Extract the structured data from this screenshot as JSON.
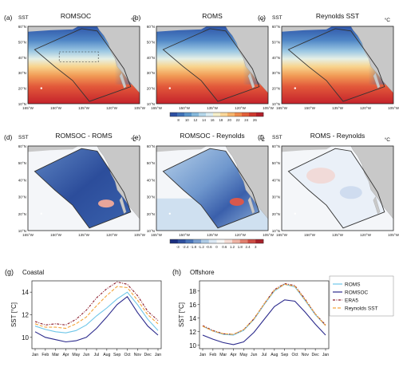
{
  "figure": {
    "colors": {
      "roms": "#6ec6e8",
      "romsoc": "#2b2a8c",
      "era5": "#8b1a2a",
      "reynolds": "#f4a43a",
      "land": "#c8c8c8",
      "box": "#555555"
    },
    "top_row": {
      "panels": [
        {
          "letter": "(a)",
          "var": "SST",
          "title": "ROMSOC",
          "unit": "°C"
        },
        {
          "letter": "(b)",
          "var": "",
          "title": "ROMS",
          "unit": "°C"
        },
        {
          "letter": "(c)",
          "var": "SST",
          "title": "Reynolds SST",
          "unit": "°C"
        }
      ],
      "lat_ticks": [
        "60°N",
        "50°N",
        "40°N",
        "30°N",
        "20°N",
        "10°N"
      ],
      "lon_ticks": [
        "165°W",
        "150°W",
        "135°W",
        "120°W",
        "105°W"
      ],
      "colorbar": {
        "ticks": [
          "8",
          "10",
          "12",
          "14",
          "16",
          "18",
          "20",
          "22",
          "24",
          "26"
        ],
        "colors": [
          "#2d4fa3",
          "#3f72b8",
          "#5b96cb",
          "#86b9dc",
          "#b5d7ea",
          "#dcedf3",
          "#f6efc9",
          "#fbd89a",
          "#f7b56d",
          "#ef8a4b",
          "#e3603a",
          "#cf3a2f",
          "#b31f2a"
        ]
      }
    },
    "middle_row": {
      "panels": [
        {
          "letter": "(d)",
          "var": "SST",
          "title": "ROMSOC - ROMS",
          "unit": "°C"
        },
        {
          "letter": "(e)",
          "var": "",
          "title": "ROMSOC - Reynolds",
          "unit": "°C"
        },
        {
          "letter": "(f)",
          "var": "SST",
          "title": "ROMS - Reynolds",
          "unit": "°C"
        }
      ],
      "lat_ticks": [
        "60°N",
        "50°N",
        "40°N",
        "30°N",
        "20°N",
        "10°N"
      ],
      "lon_ticks": [
        "165°W",
        "150°W",
        "135°W",
        "120°W",
        "105°W"
      ],
      "colorbar": {
        "ticks": [
          "-3",
          "-2.4",
          "-1.8",
          "-1.2",
          "-0.6",
          "0",
          "0.6",
          "1.2",
          "1.8",
          "2.4",
          "3"
        ],
        "colors": [
          "#1b2f80",
          "#2e4f9e",
          "#4a74b8",
          "#7b9fd0",
          "#aecbe6",
          "#dbe8f3",
          "#f6f6f6",
          "#f5ddd6",
          "#efb4a6",
          "#e2806f",
          "#cc4d44",
          "#a7212a"
        ]
      }
    },
    "bottom_charts": {
      "months": [
        "Jan",
        "Feb",
        "Mar",
        "Apr",
        "May",
        "Jun",
        "Jul",
        "Aug",
        "Sep",
        "Oct",
        "Nov",
        "Dec",
        "Jan"
      ],
      "legend": [
        "ROMS",
        "ROMSOC",
        "ERA5",
        "Reynolds SST"
      ]
    }
  },
  "chart_data": [
    {
      "type": "line",
      "panel": "(g)",
      "title": "Coastal",
      "ylabel": "SST [°C]",
      "xlabel": "",
      "ylim": [
        9,
        15
      ],
      "yticks": [
        10,
        12,
        14
      ],
      "x": [
        "Jan",
        "Feb",
        "Mar",
        "Apr",
        "May",
        "Jun",
        "Jul",
        "Aug",
        "Sep",
        "Oct",
        "Nov",
        "Dec",
        "Jan"
      ],
      "series": [
        {
          "name": "ROMS",
          "values": [
            11.0,
            10.7,
            10.5,
            10.4,
            10.6,
            11.1,
            11.9,
            12.6,
            13.4,
            14.0,
            12.9,
            11.6,
            10.6
          ]
        },
        {
          "name": "ROMSOC",
          "values": [
            10.5,
            10.0,
            9.8,
            9.6,
            9.7,
            10.0,
            10.8,
            11.8,
            12.9,
            13.6,
            12.2,
            11.0,
            10.2
          ]
        },
        {
          "name": "ERA5",
          "values": [
            11.4,
            11.1,
            11.2,
            11.1,
            11.6,
            12.4,
            13.5,
            14.3,
            14.9,
            14.7,
            13.7,
            12.3,
            11.5
          ]
        },
        {
          "name": "Reynolds SST",
          "values": [
            11.2,
            10.9,
            10.9,
            10.8,
            11.2,
            11.8,
            12.8,
            13.7,
            14.5,
            14.4,
            13.3,
            12.0,
            11.2
          ]
        }
      ]
    },
    {
      "type": "line",
      "panel": "(h)",
      "title": "Offshore",
      "ylabel": "SST [°C]",
      "xlabel": "",
      "ylim": [
        9.5,
        19.5
      ],
      "yticks": [
        10,
        12,
        14,
        16,
        18
      ],
      "x": [
        "Jan",
        "Feb",
        "Mar",
        "Apr",
        "May",
        "Jun",
        "Jul",
        "Aug",
        "Sep",
        "Oct",
        "Nov",
        "Dec",
        "Jan"
      ],
      "series": [
        {
          "name": "ROMS",
          "values": [
            12.8,
            12.1,
            11.6,
            11.5,
            12.2,
            13.8,
            16.0,
            18.0,
            19.0,
            18.6,
            16.6,
            14.5,
            12.9
          ]
        },
        {
          "name": "ROMSOC",
          "values": [
            11.5,
            10.9,
            10.4,
            10.1,
            10.5,
            11.9,
            13.8,
            15.7,
            16.7,
            16.5,
            14.9,
            13.1,
            11.5
          ]
        },
        {
          "name": "ERA5",
          "values": [
            12.9,
            12.2,
            11.7,
            11.6,
            12.3,
            13.9,
            16.1,
            18.2,
            19.1,
            18.8,
            16.8,
            14.6,
            13.0
          ]
        },
        {
          "name": "Reynolds SST",
          "values": [
            12.8,
            12.1,
            11.7,
            11.6,
            12.3,
            13.9,
            16.1,
            18.1,
            19.0,
            18.7,
            16.7,
            14.6,
            12.9
          ]
        }
      ]
    }
  ]
}
